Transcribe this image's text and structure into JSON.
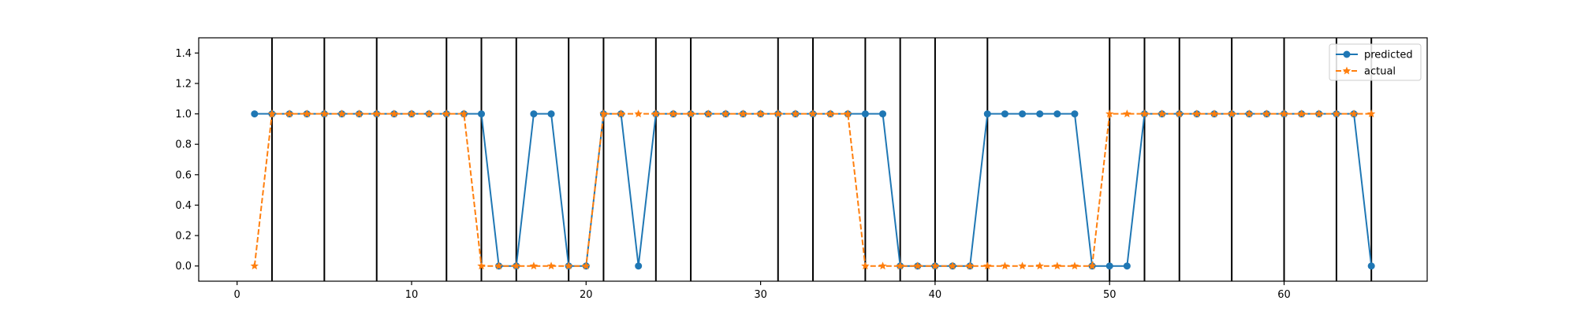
{
  "chart_data": {
    "type": "line",
    "title": "",
    "xlabel": "",
    "ylabel": "",
    "xlim": [
      -2.2,
      68.2
    ],
    "ylim": [
      -0.1,
      1.5
    ],
    "x_ticks": [
      0,
      10,
      20,
      30,
      40,
      50,
      60
    ],
    "y_ticks": [
      0.0,
      0.2,
      0.4,
      0.6,
      0.8,
      1.0,
      1.2,
      1.4
    ],
    "x_tick_labels": [
      "0",
      "10",
      "20",
      "30",
      "40",
      "50",
      "60"
    ],
    "y_tick_labels": [
      "0.0",
      "0.2",
      "0.4",
      "0.6",
      "0.8",
      "1.0",
      "1.2",
      "1.4"
    ],
    "grid": false,
    "legend_position": "top-right",
    "vertical_lines": [
      2,
      5,
      8,
      12,
      14,
      16,
      19,
      21,
      24,
      26,
      31,
      33,
      36,
      38,
      40,
      43,
      50,
      52,
      54,
      57,
      60,
      63,
      65
    ],
    "vertical_line_color": "#000000",
    "x": [
      1,
      2,
      3,
      4,
      5,
      6,
      7,
      8,
      9,
      10,
      11,
      12,
      13,
      14,
      15,
      16,
      17,
      18,
      19,
      20,
      21,
      22,
      23,
      24,
      25,
      26,
      27,
      28,
      29,
      30,
      31,
      32,
      33,
      34,
      35,
      36,
      37,
      38,
      39,
      40,
      41,
      42,
      43,
      44,
      45,
      46,
      47,
      48,
      49,
      50,
      51,
      52,
      53,
      54,
      55,
      56,
      57,
      58,
      59,
      60,
      61,
      62,
      63,
      64,
      65
    ],
    "series": [
      {
        "name": "predicted",
        "color": "#1f77b4",
        "line_style": "solid",
        "marker": "circle",
        "values": [
          1,
          1,
          1,
          1,
          1,
          1,
          1,
          1,
          1,
          1,
          1,
          1,
          1,
          1,
          0,
          0,
          1,
          1,
          0,
          0,
          1,
          1,
          0,
          1,
          1,
          1,
          1,
          1,
          1,
          1,
          1,
          1,
          1,
          1,
          1,
          1,
          1,
          0,
          0,
          0,
          0,
          0,
          1,
          1,
          1,
          1,
          1,
          1,
          0,
          0,
          0,
          1,
          1,
          1,
          1,
          1,
          1,
          1,
          1,
          1,
          1,
          1,
          1,
          1,
          0
        ]
      },
      {
        "name": "actual",
        "color": "#ff7f0e",
        "line_style": "dashed",
        "marker": "star",
        "values": [
          0,
          1,
          1,
          1,
          1,
          1,
          1,
          1,
          1,
          1,
          1,
          1,
          1,
          0,
          0,
          0,
          0,
          0,
          0,
          0,
          1,
          1,
          1,
          1,
          1,
          1,
          1,
          1,
          1,
          1,
          1,
          1,
          1,
          1,
          1,
          0,
          0,
          0,
          0,
          0,
          0,
          0,
          0,
          0,
          0,
          0,
          0,
          0,
          0,
          1,
          1,
          1,
          1,
          1,
          1,
          1,
          1,
          1,
          1,
          1,
          1,
          1,
          1,
          1,
          1
        ]
      }
    ]
  }
}
